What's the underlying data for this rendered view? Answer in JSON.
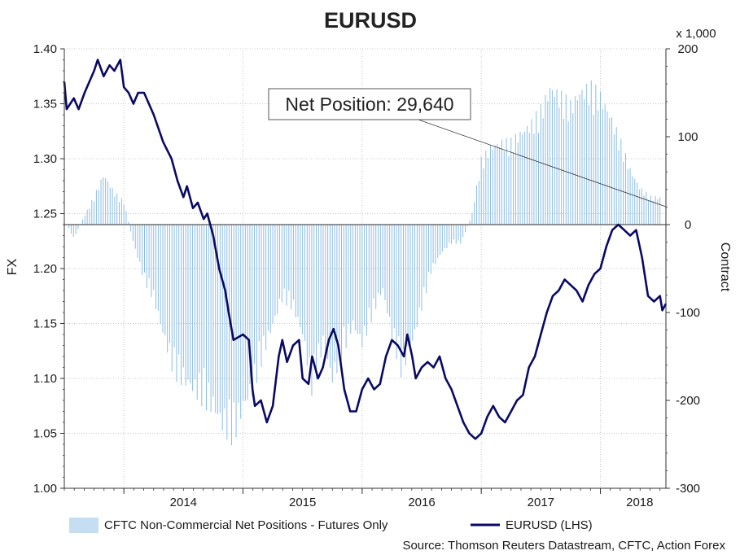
{
  "chart_data": {
    "type": "bar+line",
    "title": "EURUSD",
    "left_axis": {
      "label": "FX",
      "range": [
        1.0,
        1.4
      ],
      "ticks": [
        "1.00",
        "1.05",
        "1.10",
        "1.15",
        "1.20",
        "1.25",
        "1.30",
        "1.35",
        "1.40"
      ]
    },
    "right_axis": {
      "label": "Contract",
      "multiplier_label": "x 1,000",
      "range": [
        -300,
        200
      ],
      "ticks": [
        "-300",
        "-200",
        "-100",
        "0",
        "100",
        "200"
      ]
    },
    "x_axis": {
      "range": [
        2013.5,
        2018.55
      ],
      "ticks": [
        "2014",
        "2015",
        "2016",
        "2017",
        "2018"
      ]
    },
    "annotation": {
      "text": "Net Position: 29,640",
      "value": 29.64
    },
    "legend": [
      {
        "name": "CFTC Non-Commercial Net Positions - Futures Only",
        "color": "#7fb4e0"
      },
      {
        "name": "EURUSD (LHS)",
        "color": "#0a0a64"
      }
    ],
    "source": "Source: Thomson Reuters Datastream, CFTC, Action Forex",
    "series": [
      {
        "name": "CFTC Non-Commercial Net Positions - Futures Only",
        "axis": "right",
        "kind": "bar",
        "points": [
          [
            2013.5,
            5
          ],
          [
            2013.58,
            -15
          ],
          [
            2013.67,
            10
          ],
          [
            2013.75,
            30
          ],
          [
            2013.83,
            55
          ],
          [
            2013.92,
            35
          ],
          [
            2014.0,
            25
          ],
          [
            2014.08,
            -20
          ],
          [
            2014.17,
            -60
          ],
          [
            2014.25,
            -80
          ],
          [
            2014.33,
            -120
          ],
          [
            2014.42,
            -160
          ],
          [
            2014.5,
            -170
          ],
          [
            2014.58,
            -180
          ],
          [
            2014.67,
            -190
          ],
          [
            2014.75,
            -200
          ],
          [
            2014.83,
            -220
          ],
          [
            2014.92,
            -230
          ],
          [
            2015.0,
            -200
          ],
          [
            2015.08,
            -180
          ],
          [
            2015.17,
            -140
          ],
          [
            2015.25,
            -110
          ],
          [
            2015.33,
            -80
          ],
          [
            2015.42,
            -90
          ],
          [
            2015.5,
            -120
          ],
          [
            2015.58,
            -180
          ],
          [
            2015.67,
            -130
          ],
          [
            2015.75,
            -170
          ],
          [
            2015.83,
            -140
          ],
          [
            2015.92,
            -110
          ],
          [
            2016.0,
            -130
          ],
          [
            2016.08,
            -100
          ],
          [
            2016.17,
            -70
          ],
          [
            2016.25,
            -120
          ],
          [
            2016.33,
            -160
          ],
          [
            2016.42,
            -130
          ],
          [
            2016.5,
            -90
          ],
          [
            2016.58,
            -50
          ],
          [
            2016.67,
            -30
          ],
          [
            2016.75,
            -20
          ],
          [
            2016.83,
            -20
          ],
          [
            2016.92,
            10
          ],
          [
            2017.0,
            70
          ],
          [
            2017.08,
            85
          ],
          [
            2017.17,
            90
          ],
          [
            2017.25,
            90
          ],
          [
            2017.33,
            100
          ],
          [
            2017.42,
            110
          ],
          [
            2017.5,
            125
          ],
          [
            2017.58,
            150
          ],
          [
            2017.67,
            140
          ],
          [
            2017.75,
            130
          ],
          [
            2017.83,
            145
          ],
          [
            2017.92,
            150
          ],
          [
            2018.0,
            140
          ],
          [
            2018.08,
            120
          ],
          [
            2018.17,
            90
          ],
          [
            2018.25,
            60
          ],
          [
            2018.33,
            40
          ],
          [
            2018.42,
            30
          ],
          [
            2018.5,
            29.64
          ]
        ]
      },
      {
        "name": "EURUSD (LHS)",
        "axis": "left",
        "kind": "line",
        "points": [
          [
            2013.5,
            1.37
          ],
          [
            2013.52,
            1.345
          ],
          [
            2013.58,
            1.355
          ],
          [
            2013.62,
            1.345
          ],
          [
            2013.67,
            1.36
          ],
          [
            2013.75,
            1.38
          ],
          [
            2013.78,
            1.39
          ],
          [
            2013.83,
            1.375
          ],
          [
            2013.88,
            1.385
          ],
          [
            2013.92,
            1.38
          ],
          [
            2013.97,
            1.39
          ],
          [
            2014.0,
            1.365
          ],
          [
            2014.04,
            1.36
          ],
          [
            2014.08,
            1.35
          ],
          [
            2014.12,
            1.36
          ],
          [
            2014.17,
            1.36
          ],
          [
            2014.25,
            1.34
          ],
          [
            2014.33,
            1.315
          ],
          [
            2014.4,
            1.3
          ],
          [
            2014.45,
            1.28
          ],
          [
            2014.5,
            1.265
          ],
          [
            2014.53,
            1.275
          ],
          [
            2014.58,
            1.255
          ],
          [
            2014.62,
            1.26
          ],
          [
            2014.67,
            1.245
          ],
          [
            2014.7,
            1.25
          ],
          [
            2014.75,
            1.23
          ],
          [
            2014.8,
            1.2
          ],
          [
            2014.85,
            1.18
          ],
          [
            2014.88,
            1.16
          ],
          [
            2014.92,
            1.135
          ],
          [
            2015.0,
            1.14
          ],
          [
            2015.05,
            1.135
          ],
          [
            2015.08,
            1.09
          ],
          [
            2015.1,
            1.075
          ],
          [
            2015.15,
            1.08
          ],
          [
            2015.2,
            1.06
          ],
          [
            2015.25,
            1.075
          ],
          [
            2015.3,
            1.12
          ],
          [
            2015.33,
            1.135
          ],
          [
            2015.37,
            1.115
          ],
          [
            2015.42,
            1.13
          ],
          [
            2015.47,
            1.135
          ],
          [
            2015.5,
            1.1
          ],
          [
            2015.55,
            1.095
          ],
          [
            2015.58,
            1.12
          ],
          [
            2015.63,
            1.1
          ],
          [
            2015.67,
            1.11
          ],
          [
            2015.72,
            1.135
          ],
          [
            2015.76,
            1.145
          ],
          [
            2015.8,
            1.13
          ],
          [
            2015.85,
            1.09
          ],
          [
            2015.9,
            1.07
          ],
          [
            2015.95,
            1.07
          ],
          [
            2016.0,
            1.09
          ],
          [
            2016.05,
            1.1
          ],
          [
            2016.1,
            1.09
          ],
          [
            2016.15,
            1.095
          ],
          [
            2016.2,
            1.12
          ],
          [
            2016.25,
            1.135
          ],
          [
            2016.3,
            1.13
          ],
          [
            2016.35,
            1.12
          ],
          [
            2016.38,
            1.14
          ],
          [
            2016.42,
            1.12
          ],
          [
            2016.45,
            1.1
          ],
          [
            2016.5,
            1.11
          ],
          [
            2016.55,
            1.115
          ],
          [
            2016.6,
            1.11
          ],
          [
            2016.65,
            1.12
          ],
          [
            2016.7,
            1.1
          ],
          [
            2016.75,
            1.09
          ],
          [
            2016.8,
            1.075
          ],
          [
            2016.85,
            1.06
          ],
          [
            2016.9,
            1.05
          ],
          [
            2016.95,
            1.045
          ],
          [
            2017.0,
            1.05
          ],
          [
            2017.05,
            1.065
          ],
          [
            2017.1,
            1.075
          ],
          [
            2017.15,
            1.065
          ],
          [
            2017.2,
            1.06
          ],
          [
            2017.25,
            1.07
          ],
          [
            2017.3,
            1.08
          ],
          [
            2017.35,
            1.085
          ],
          [
            2017.4,
            1.11
          ],
          [
            2017.45,
            1.12
          ],
          [
            2017.5,
            1.14
          ],
          [
            2017.55,
            1.16
          ],
          [
            2017.6,
            1.175
          ],
          [
            2017.65,
            1.18
          ],
          [
            2017.7,
            1.19
          ],
          [
            2017.75,
            1.185
          ],
          [
            2017.8,
            1.18
          ],
          [
            2017.85,
            1.17
          ],
          [
            2017.9,
            1.185
          ],
          [
            2017.95,
            1.195
          ],
          [
            2018.0,
            1.2
          ],
          [
            2018.05,
            1.22
          ],
          [
            2018.1,
            1.235
          ],
          [
            2018.15,
            1.24
          ],
          [
            2018.2,
            1.235
          ],
          [
            2018.25,
            1.23
          ],
          [
            2018.3,
            1.235
          ],
          [
            2018.35,
            1.21
          ],
          [
            2018.4,
            1.175
          ],
          [
            2018.45,
            1.17
          ],
          [
            2018.5,
            1.175
          ],
          [
            2018.52,
            1.162
          ],
          [
            2018.55,
            1.168
          ]
        ]
      }
    ]
  }
}
